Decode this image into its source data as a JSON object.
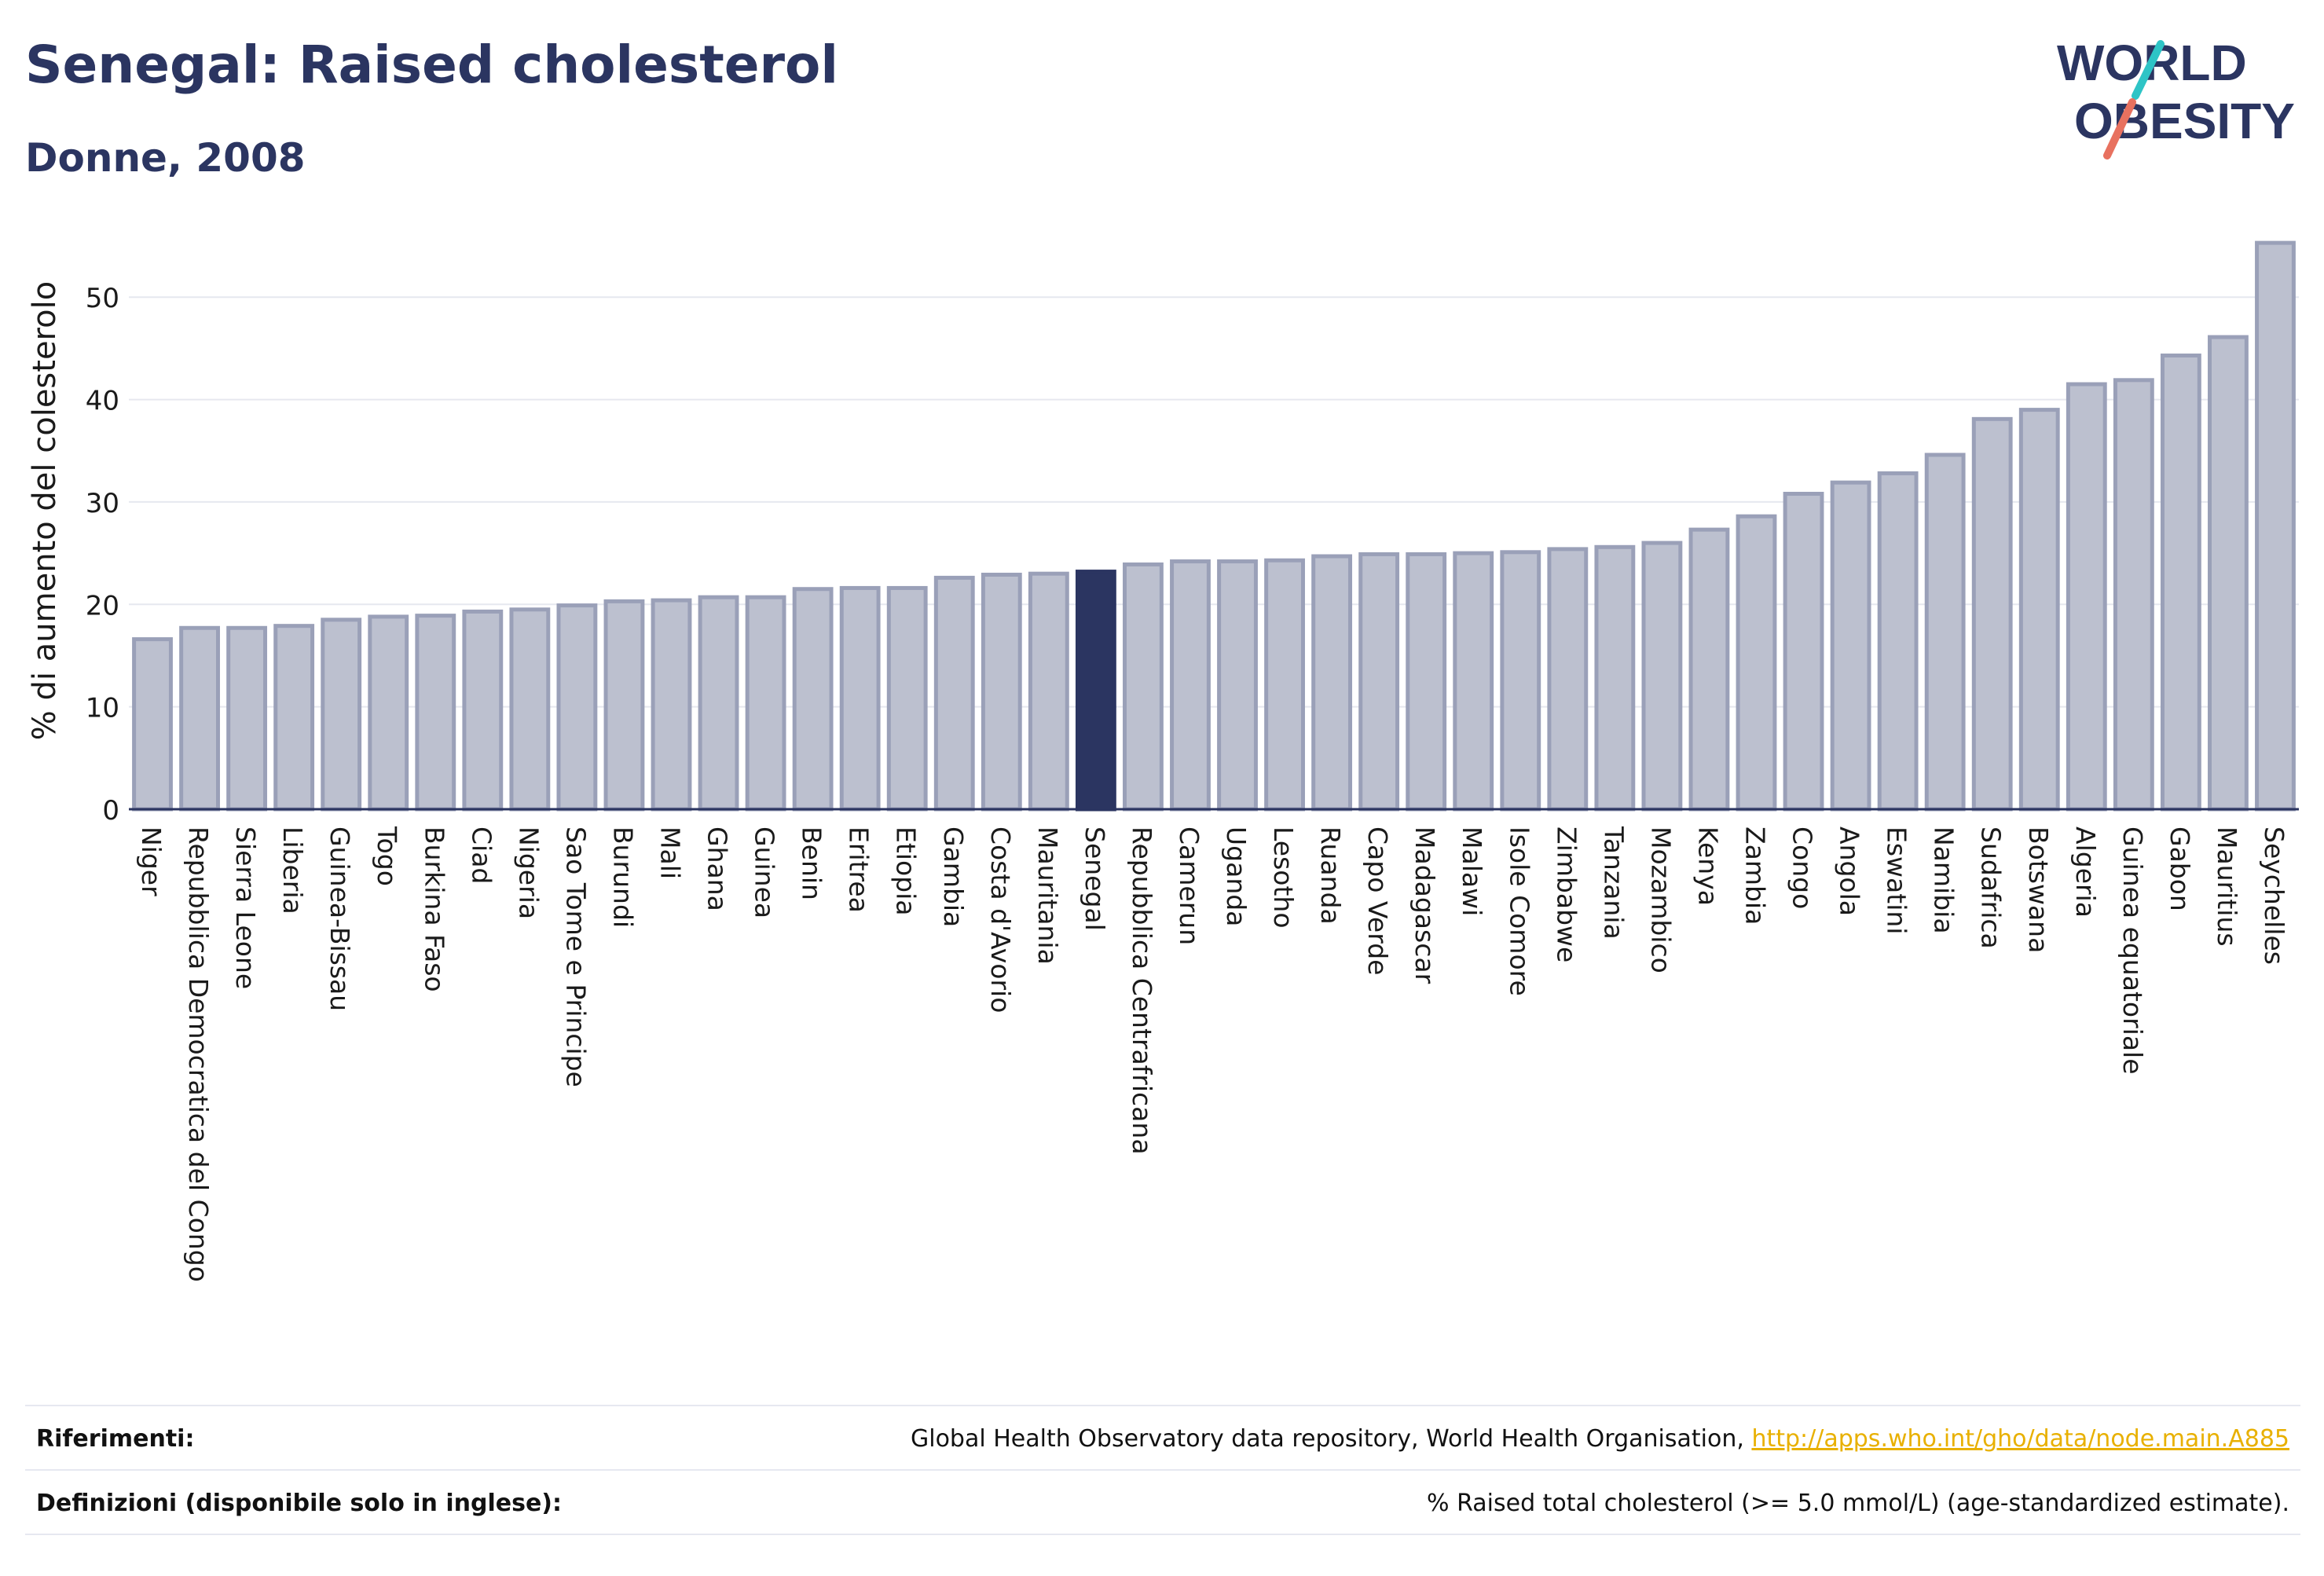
{
  "header": {
    "title": "Senegal: Raised cholesterol",
    "subtitle": "Donne, 2008"
  },
  "logo": {
    "line1": "WORLD",
    "line2": "OBESITY",
    "colors": {
      "text": "#2b3561",
      "accent_teal": "#2ec4c6",
      "accent_coral": "#e8715f"
    }
  },
  "footer": {
    "references_label": "Riferimenti:",
    "references_text": "Global Health Observatory data repository, World Health Organisation,",
    "references_link": "http://apps.who.int/gho/data/node.main.A885",
    "definitions_label": "Definizioni (disponibile solo in inglese):",
    "definitions_text": "% Raised total cholesterol (>= 5.0 mmol/L) (age-standardized estimate)."
  },
  "chart_data": {
    "type": "bar",
    "title": "Senegal: Raised cholesterol",
    "subtitle": "Donne, 2008",
    "xlabel": "",
    "ylabel": "% di aumento del colesterolo",
    "ylim": [
      0,
      56
    ],
    "yticks": [
      0,
      10,
      20,
      30,
      40,
      50
    ],
    "grid": true,
    "highlight": "Senegal",
    "colors": {
      "bar": "#bcc0cf",
      "bar_edge": "#9aa0b8",
      "highlight": "#2b3561",
      "grid": "#e6e8ef",
      "axis": "#2b3561"
    },
    "categories": [
      "Niger",
      "Repubblica Democratica del Congo",
      "Sierra Leone",
      "Liberia",
      "Guinea-Bissau",
      "Togo",
      "Burkina Faso",
      "Ciad",
      "Nigeria",
      "Sao Tome e Principe",
      "Burundi",
      "Mali",
      "Ghana",
      "Guinea",
      "Benin",
      "Eritrea",
      "Etiopia",
      "Gambia",
      "Costa d'Avorio",
      "Mauritania",
      "Senegal",
      "Repubblica Centrafricana",
      "Camerun",
      "Uganda",
      "Lesotho",
      "Ruanda",
      "Capo Verde",
      "Madagascar",
      "Malawi",
      "Isole Comore",
      "Zimbabwe",
      "Tanzania",
      "Mozambico",
      "Kenya",
      "Zambia",
      "Congo",
      "Angola",
      "Eswatini",
      "Namibia",
      "Sudafrica",
      "Botswana",
      "Algeria",
      "Guinea equatoriale",
      "Gabon",
      "Mauritius",
      "Seychelles"
    ],
    "values": [
      16.6,
      17.7,
      17.7,
      17.9,
      18.5,
      18.8,
      18.9,
      19.3,
      19.5,
      19.9,
      20.3,
      20.4,
      20.7,
      20.7,
      21.5,
      21.6,
      21.6,
      22.6,
      22.9,
      23.0,
      23.2,
      23.9,
      24.2,
      24.2,
      24.3,
      24.7,
      24.9,
      24.9,
      25.0,
      25.1,
      25.4,
      25.6,
      26.0,
      27.3,
      28.6,
      30.8,
      31.9,
      32.8,
      34.6,
      38.1,
      39.0,
      41.5,
      41.9,
      44.3,
      46.1,
      55.3
    ]
  }
}
